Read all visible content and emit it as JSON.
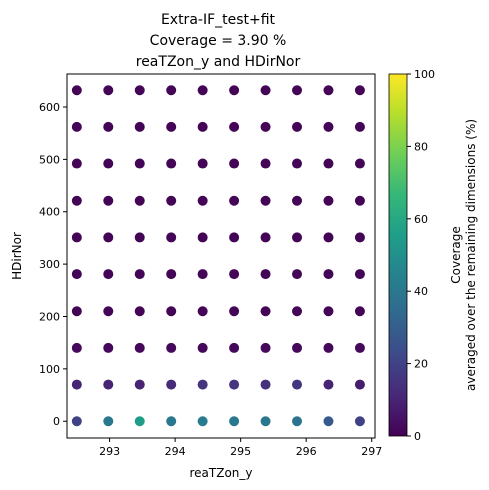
{
  "chart_data": {
    "type": "scatter",
    "title_lines": [
      "Extra-IF_test+fit",
      "Coverage = 3.90 %",
      "reaTZon_y and HDirNor"
    ],
    "xlabel": "reaTZon_y",
    "ylabel": "HDirNor",
    "xlim": [
      292.35,
      297.05
    ],
    "ylim": [
      -32,
      663
    ],
    "x_ticks": [
      293,
      294,
      295,
      296,
      297
    ],
    "y_ticks": [
      0,
      100,
      200,
      300,
      400,
      500,
      600
    ],
    "x": [
      292.5,
      292.98,
      293.46,
      293.94,
      294.42,
      294.9,
      295.38,
      295.86,
      296.34,
      296.82
    ],
    "y": [
      0,
      70,
      140,
      210,
      281,
      351,
      421,
      492,
      562,
      632
    ],
    "coverage": [
      [
        20,
        40,
        55,
        40,
        42,
        40,
        40,
        38,
        28,
        20
      ],
      [
        10,
        10,
        10,
        12,
        15,
        15,
        14,
        16,
        10,
        8
      ],
      [
        2,
        2,
        2,
        2,
        2,
        2,
        2,
        2,
        2,
        2
      ],
      [
        1,
        1,
        1,
        1,
        1,
        1,
        1,
        1,
        1,
        1
      ],
      [
        1,
        1,
        1,
        1,
        1,
        1,
        1,
        1,
        1,
        1
      ],
      [
        1,
        1,
        1,
        1,
        1,
        1,
        1,
        1,
        1,
        1
      ],
      [
        1,
        1,
        1,
        1,
        1,
        1,
        1,
        1,
        1,
        1
      ],
      [
        1,
        1,
        1,
        1,
        1,
        1,
        1,
        1,
        1,
        1
      ],
      [
        1,
        1,
        1,
        1,
        1,
        1,
        1,
        1,
        1,
        1
      ],
      [
        1,
        1,
        1,
        1,
        1,
        1,
        1,
        1,
        1,
        1
      ]
    ],
    "colorbar": {
      "label_lines": [
        "Coverage",
        "averaged over the remaining dimensions (%)"
      ],
      "range": [
        0,
        100
      ],
      "ticks": [
        0,
        20,
        40,
        60,
        80,
        100
      ],
      "colormap": "viridis"
    },
    "grid": false,
    "legend": "none"
  }
}
